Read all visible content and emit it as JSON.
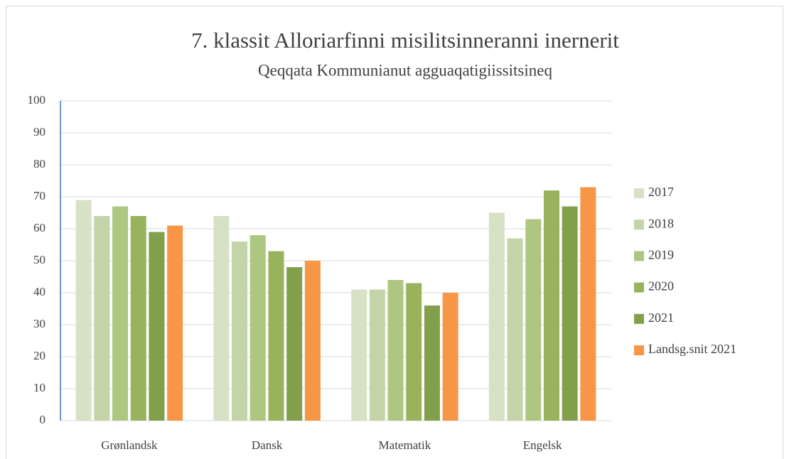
{
  "chart_data": {
    "type": "bar",
    "title": "7. klassit Alloriarfinni misilitsinneranni inernerit",
    "subtitle": "Qeqqata Kommunianut agguaqatigiissitsineq",
    "categories": [
      "Grønlandsk",
      "Dansk",
      "Matematik",
      "Engelsk"
    ],
    "series": [
      {
        "name": "2017",
        "color": "#d7e1c6",
        "values": [
          69,
          64,
          41,
          65
        ]
      },
      {
        "name": "2018",
        "color": "#c3d5a8",
        "values": [
          64,
          56,
          41,
          57
        ]
      },
      {
        "name": "2019",
        "color": "#adc781",
        "values": [
          67,
          58,
          44,
          63
        ]
      },
      {
        "name": "2020",
        "color": "#98b35c",
        "values": [
          64,
          53,
          43,
          72
        ]
      },
      {
        "name": "2021",
        "color": "#82a04c",
        "values": [
          59,
          48,
          36,
          67
        ]
      },
      {
        "name": "Landsg.snit 2021",
        "color": "#f79646",
        "values": [
          61,
          50,
          40,
          73
        ]
      }
    ],
    "ylim": [
      0,
      100
    ],
    "yticks": [
      0,
      10,
      20,
      30,
      40,
      50,
      60,
      70,
      80,
      90,
      100
    ],
    "grid": true,
    "legend": "right"
  }
}
